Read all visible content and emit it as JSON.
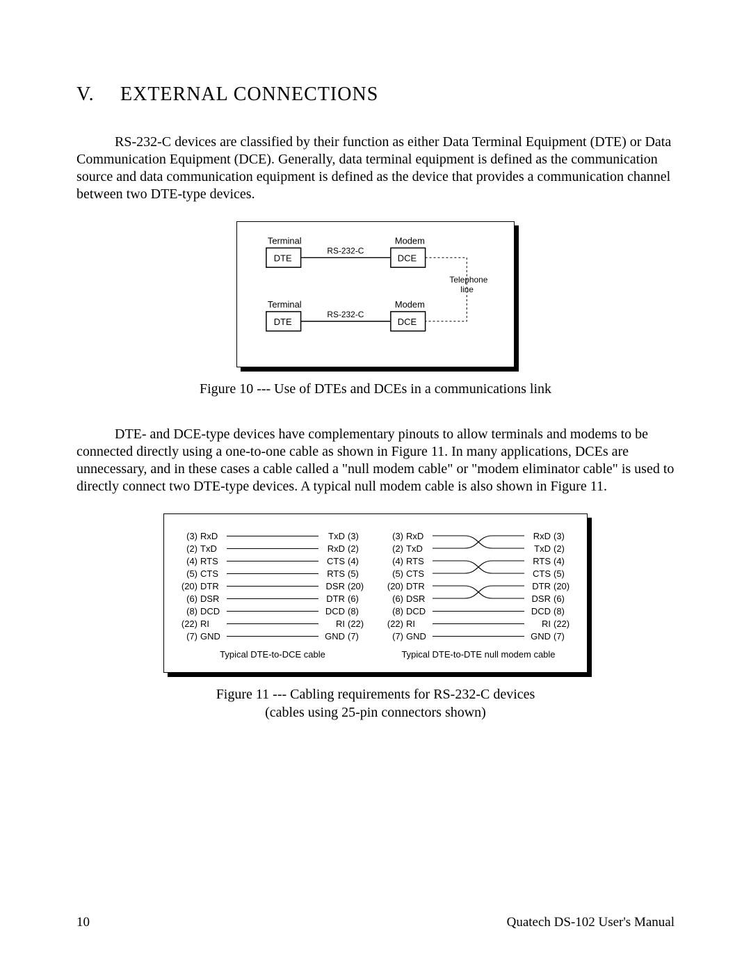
{
  "section": {
    "number": "V.",
    "title": "EXTERNAL CONNECTIONS"
  },
  "para1": "RS-232-C devices are classified by their function as either Data Terminal Equipment  (DTE) or Data Communication Equipment  (DCE). Generally, data terminal equipment is defined as the communication source and data communication equipment is defined as the device that provides a communication channel between two  DTE-type devices.",
  "para2": "DTE- and DCE-type devices have complementary  pinouts to allow terminals and modems to be connected directly using a one-to-one cable as shown in  Figure 11.  In many applications,  DCEs are unnecessary, and in these cases a cable called a \"null modem cable\" or \"modem eliminator cable\" is used to directly connect two  DTE-type devices.  A typical null modem cable is also shown in  Figure 11.",
  "fig10": {
    "caption": "Figure 10 --- Use of DTEs and DCEs in a communications link",
    "labels": {
      "terminal": "Terminal",
      "modem": "Modem",
      "dte": "DTE",
      "dce": "DCE",
      "link": "RS-232-C",
      "phone1": "Telephone",
      "phone2": "line"
    }
  },
  "fig11": {
    "caption_line1": "Figure 11 --- Cabling requirements for RS-232-C devices",
    "caption_line2": "(cables using 25-pin connectors shown)",
    "dte_dce": {
      "caption": "Typical DTE-to-DCE cable",
      "rows": [
        {
          "lp": "(3)",
          "ls": "RxD",
          "rs": "TxD",
          "rp": "(3)"
        },
        {
          "lp": "(2)",
          "ls": "TxD",
          "rs": "RxD",
          "rp": "(2)"
        },
        {
          "lp": "(4)",
          "ls": "RTS",
          "rs": "CTS",
          "rp": "(4)"
        },
        {
          "lp": "(5)",
          "ls": "CTS",
          "rs": "RTS",
          "rp": "(5)"
        },
        {
          "lp": "(20)",
          "ls": "DTR",
          "rs": "DSR",
          "rp": "(20)"
        },
        {
          "lp": "(6)",
          "ls": "DSR",
          "rs": "DTR",
          "rp": "(6)"
        },
        {
          "lp": "(8)",
          "ls": "DCD",
          "rs": "DCD",
          "rp": "(8)"
        },
        {
          "lp": "(22)",
          "ls": "RI",
          "rs": "RI",
          "rp": "(22)"
        },
        {
          "lp": "(7)",
          "ls": "GND",
          "rs": "GND",
          "rp": "(7)"
        }
      ]
    },
    "dte_dte": {
      "caption": "Typical DTE-to-DTE null modem cable",
      "rows": [
        {
          "lp": "(3)",
          "ls": "RxD",
          "rs": "RxD",
          "rp": "(3)",
          "cross": "top"
        },
        {
          "lp": "(2)",
          "ls": "TxD",
          "rs": "TxD",
          "rp": "(2)",
          "cross": "bottom"
        },
        {
          "lp": "(4)",
          "ls": "RTS",
          "rs": "RTS",
          "rp": "(4)",
          "cross": "top"
        },
        {
          "lp": "(5)",
          "ls": "CTS",
          "rs": "CTS",
          "rp": "(5)",
          "cross": "bottom"
        },
        {
          "lp": "(20)",
          "ls": "DTR",
          "rs": "DTR",
          "rp": "(20)",
          "cross": "top"
        },
        {
          "lp": "(6)",
          "ls": "DSR",
          "rs": "DSR",
          "rp": "(6)",
          "cross": "bottom"
        },
        {
          "lp": "(8)",
          "ls": "DCD",
          "rs": "DCD",
          "rp": "(8)",
          "cross": "none"
        },
        {
          "lp": "(22)",
          "ls": "RI",
          "rs": "RI",
          "rp": "(22)",
          "cross": "none"
        },
        {
          "lp": "(7)",
          "ls": "GND",
          "rs": "GND",
          "rp": "(7)",
          "cross": "none"
        }
      ]
    }
  },
  "footer": {
    "page": "10",
    "manual": "Quatech DS-102 User's Manual"
  }
}
